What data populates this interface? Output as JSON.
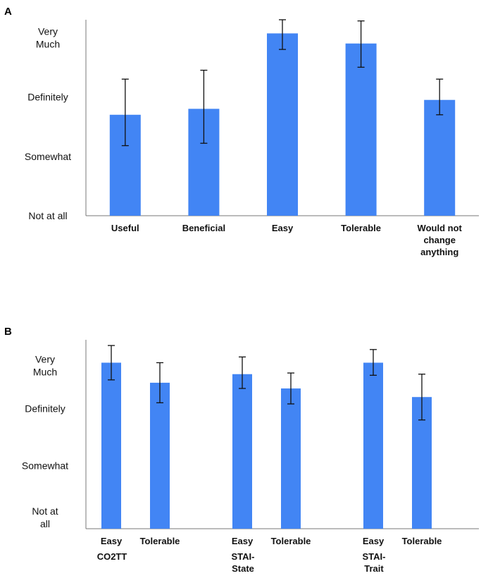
{
  "chart_data": [
    {
      "panel": "A",
      "type": "bar",
      "y_scale": {
        "min": 0,
        "max": 3.3
      },
      "y_ticks": [
        {
          "value": 0,
          "lines": [
            "Not at all"
          ]
        },
        {
          "value": 1,
          "lines": [
            "Somewhat"
          ]
        },
        {
          "value": 2,
          "lines": [
            "Definitely"
          ]
        },
        {
          "value": 3,
          "lines": [
            "Very",
            "Much"
          ]
        }
      ],
      "categories": [
        {
          "lines": [
            "Useful"
          ],
          "value": 1.7,
          "err_low": 1.18,
          "err_high": 2.3
        },
        {
          "lines": [
            "Beneficial"
          ],
          "value": 1.8,
          "err_low": 1.22,
          "err_high": 2.45
        },
        {
          "lines": [
            "Easy"
          ],
          "value": 3.07,
          "err_low": 2.8,
          "err_high": 3.3
        },
        {
          "lines": [
            "Tolerable"
          ],
          "value": 2.9,
          "err_low": 2.5,
          "err_high": 3.28
        },
        {
          "lines": [
            "Would not",
            "change",
            "anything"
          ],
          "value": 1.95,
          "err_low": 1.7,
          "err_high": 2.3
        }
      ],
      "bar_color": "#4285F4"
    },
    {
      "panel": "B",
      "type": "bar",
      "y_scale": {
        "min": 0,
        "max": 3.3
      },
      "y_ticks": [
        {
          "value": 0.2,
          "lines": [
            "Not at",
            "all"
          ]
        },
        {
          "value": 1.1,
          "lines": [
            "Somewhat"
          ]
        },
        {
          "value": 2.1,
          "lines": [
            "Definitely"
          ]
        },
        {
          "value": 2.85,
          "lines": [
            "Very",
            "Much"
          ]
        }
      ],
      "groups": [
        {
          "label_lines": [
            "CO2TT"
          ],
          "bars": [
            {
              "label": "Easy",
              "value": 2.9,
              "err_low": 2.6,
              "err_high": 3.2
            },
            {
              "label": "Tolerable",
              "value": 2.55,
              "err_low": 2.2,
              "err_high": 2.9
            }
          ]
        },
        {
          "label_lines": [
            "STAI-",
            "State"
          ],
          "bars": [
            {
              "label": "Easy",
              "value": 2.7,
              "err_low": 2.45,
              "err_high": 3.0
            },
            {
              "label": "Tolerable",
              "value": 2.45,
              "err_low": 2.18,
              "err_high": 2.72
            }
          ]
        },
        {
          "label_lines": [
            "STAI-",
            "Trait"
          ],
          "bars": [
            {
              "label": "Easy",
              "value": 2.9,
              "err_low": 2.68,
              "err_high": 3.13
            },
            {
              "label": "Tolerable",
              "value": 2.3,
              "err_low": 1.9,
              "err_high": 2.7
            }
          ]
        }
      ],
      "bar_color": "#4285F4"
    }
  ]
}
